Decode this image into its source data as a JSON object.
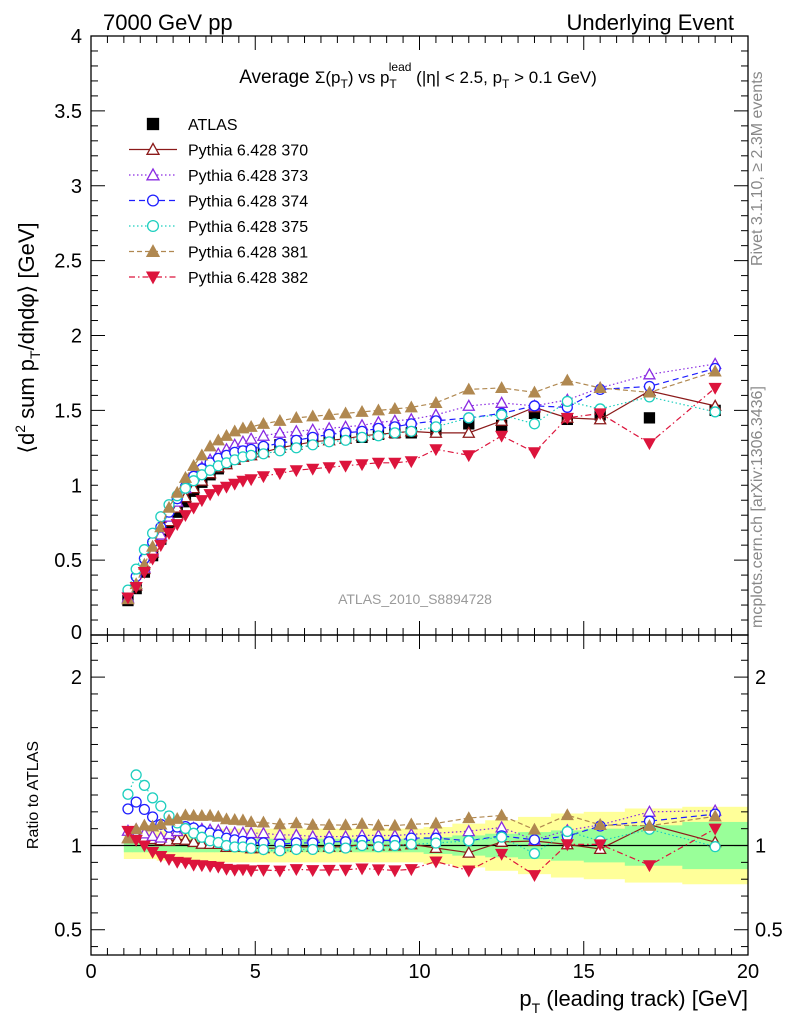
{
  "header": {
    "left": "7000 GeV pp",
    "right": "Underlying Event"
  },
  "plot_title": {
    "prefix": "Average ",
    "sigma": "Σ(p",
    "sigma_sub": "T",
    "mid": ") vs p",
    "lead_sub": "T",
    "lead_sup": "lead",
    "suffix": " (|η| < 2.5, p",
    "suffix_sub": "T",
    "suffix_end": " > 0.1 GeV)"
  },
  "side_labels": {
    "rivet": "Rivet 3.1.10, ≥ 2.3M events",
    "mcplots": "mcplots.cern.ch [arXiv:1306.3436]"
  },
  "analysis_label": "ATLAS_2010_S8894728",
  "ratio_ylabel": "Ratio to ATLAS",
  "main_ylabel": {
    "p1": "⟨d",
    "sup": "2",
    "p2": " sum p",
    "sub": "T",
    "p3": "/dηdφ⟩ [GeV]"
  },
  "xlabel": {
    "p1": "p",
    "sub": "T",
    "p2": " (leading track) [GeV]"
  },
  "colors": {
    "band_green": "#99ff99",
    "band_yellow": "#ffff99",
    "atlas": "#000000",
    "s370": "#8b1a1a",
    "s373": "#8a2be2",
    "s374": "#1e1eff",
    "s375": "#1ecfbf",
    "s381": "#b08850",
    "s382": "#dc143c"
  },
  "chart_data": {
    "type": "scatter",
    "xlim": [
      0,
      20
    ],
    "ylim_main": [
      0,
      4
    ],
    "ylim_ratio": [
      0.35,
      2.25
    ],
    "x_ticks": [
      0,
      5,
      10,
      15,
      20
    ],
    "y_ticks_main": [
      "0",
      "0.5",
      "1",
      "1.5",
      "2",
      "2.5",
      "3",
      "3.5",
      "4"
    ],
    "y_ticks_ratio": [
      "0.5",
      "1",
      "2"
    ],
    "legend_position": "top-left",
    "x": [
      1.125,
      1.375,
      1.625,
      1.875,
      2.125,
      2.375,
      2.625,
      2.875,
      3.125,
      3.375,
      3.625,
      3.875,
      4.125,
      4.375,
      4.625,
      4.875,
      5.25,
      5.75,
      6.25,
      6.75,
      7.25,
      7.75,
      8.25,
      8.75,
      9.25,
      9.75,
      10.5,
      11.5,
      12.5,
      13.5,
      14.5,
      15.5,
      17.0,
      19.0
    ],
    "series": [
      {
        "name": "ATLAS",
        "style": "data",
        "values": [
          0.23,
          0.31,
          0.42,
          0.53,
          0.64,
          0.74,
          0.82,
          0.89,
          0.96,
          1.02,
          1.07,
          1.11,
          1.15,
          1.18,
          1.2,
          1.22,
          1.24,
          1.27,
          1.28,
          1.3,
          1.31,
          1.32,
          1.32,
          1.34,
          1.35,
          1.35,
          1.37,
          1.41,
          1.4,
          1.48,
          1.44,
          1.47,
          1.45,
          1.5
        ]
      },
      {
        "name": "Pythia 6.428 370",
        "style": "s370",
        "values": [
          0.24,
          0.33,
          0.44,
          0.55,
          0.66,
          0.76,
          0.85,
          0.92,
          0.98,
          1.03,
          1.08,
          1.12,
          1.14,
          1.17,
          1.19,
          1.2,
          1.22,
          1.25,
          1.27,
          1.29,
          1.3,
          1.31,
          1.33,
          1.34,
          1.35,
          1.36,
          1.35,
          1.35,
          1.43,
          1.52,
          1.45,
          1.44,
          1.63,
          1.53
        ]
      },
      {
        "name": "Pythia 6.428 373",
        "style": "s373",
        "values": [
          0.25,
          0.34,
          0.45,
          0.56,
          0.67,
          0.79,
          0.89,
          0.98,
          1.06,
          1.12,
          1.17,
          1.21,
          1.24,
          1.27,
          1.29,
          1.31,
          1.33,
          1.35,
          1.36,
          1.37,
          1.38,
          1.39,
          1.4,
          1.42,
          1.43,
          1.44,
          1.47,
          1.53,
          1.55,
          1.53,
          1.57,
          1.65,
          1.74,
          1.81
        ]
      },
      {
        "name": "Pythia 6.428 374",
        "style": "s374",
        "values": [
          0.28,
          0.39,
          0.51,
          0.62,
          0.72,
          0.82,
          0.91,
          0.99,
          1.06,
          1.11,
          1.15,
          1.18,
          1.2,
          1.22,
          1.23,
          1.24,
          1.26,
          1.28,
          1.3,
          1.32,
          1.34,
          1.35,
          1.36,
          1.38,
          1.39,
          1.41,
          1.43,
          1.45,
          1.48,
          1.53,
          1.52,
          1.64,
          1.66,
          1.78
        ]
      },
      {
        "name": "Pythia 6.428 375",
        "style": "s375",
        "values": [
          0.3,
          0.44,
          0.57,
          0.68,
          0.79,
          0.87,
          0.93,
          0.98,
          1.03,
          1.07,
          1.1,
          1.13,
          1.15,
          1.17,
          1.19,
          1.2,
          1.21,
          1.23,
          1.25,
          1.27,
          1.29,
          1.3,
          1.32,
          1.33,
          1.35,
          1.36,
          1.39,
          1.45,
          1.47,
          1.41,
          1.56,
          1.51,
          1.59,
          1.49
        ]
      },
      {
        "name": "Pythia 6.428 381",
        "style": "s381",
        "values": [
          0.24,
          0.34,
          0.47,
          0.59,
          0.72,
          0.85,
          0.95,
          1.05,
          1.13,
          1.2,
          1.26,
          1.3,
          1.33,
          1.36,
          1.38,
          1.39,
          1.41,
          1.43,
          1.45,
          1.46,
          1.47,
          1.48,
          1.49,
          1.5,
          1.51,
          1.52,
          1.55,
          1.64,
          1.65,
          1.62,
          1.7,
          1.65,
          1.62,
          1.76
        ]
      },
      {
        "name": "Pythia 6.428 382",
        "style": "s382",
        "values": [
          0.25,
          0.32,
          0.42,
          0.51,
          0.6,
          0.68,
          0.74,
          0.8,
          0.85,
          0.9,
          0.94,
          0.97,
          0.99,
          1.01,
          1.03,
          1.04,
          1.06,
          1.08,
          1.1,
          1.11,
          1.12,
          1.13,
          1.14,
          1.15,
          1.15,
          1.16,
          1.24,
          1.2,
          1.33,
          1.22,
          1.45,
          1.48,
          1.28,
          1.65
        ]
      }
    ],
    "ratio_band_yellow": [
      0.08,
      0.08,
      0.08,
      0.08,
      0.09,
      0.09,
      0.1,
      0.1,
      0.1,
      0.1,
      0.1,
      0.1,
      0.1,
      0.1,
      0.1,
      0.1,
      0.1,
      0.1,
      0.1,
      0.1,
      0.1,
      0.1,
      0.1,
      0.1,
      0.1,
      0.1,
      0.11,
      0.13,
      0.15,
      0.17,
      0.19,
      0.2,
      0.22,
      0.23
    ],
    "ratio_band_green": [
      0.04,
      0.04,
      0.04,
      0.04,
      0.04,
      0.04,
      0.04,
      0.04,
      0.04,
      0.04,
      0.04,
      0.04,
      0.04,
      0.04,
      0.04,
      0.04,
      0.04,
      0.04,
      0.04,
      0.04,
      0.04,
      0.04,
      0.04,
      0.04,
      0.04,
      0.04,
      0.05,
      0.06,
      0.07,
      0.08,
      0.09,
      0.1,
      0.12,
      0.14
    ]
  }
}
